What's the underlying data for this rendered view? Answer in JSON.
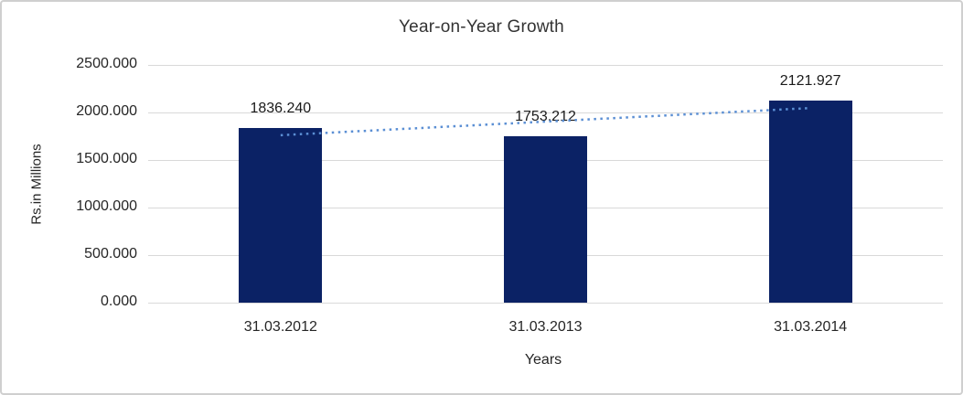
{
  "chart_data": {
    "type": "bar",
    "title": "Year-on-Year Growth",
    "xlabel": "Years",
    "ylabel": "Rs.in Millions",
    "categories": [
      "31.03.2012",
      "31.03.2013",
      "31.03.2014"
    ],
    "values": [
      1836.24,
      1753.212,
      2121.927
    ],
    "value_labels": [
      "1836.240",
      "1753.212",
      "2121.927"
    ],
    "ylim": [
      0,
      2500
    ],
    "ytick_labels": [
      "2500.000",
      "2000.000",
      "1500.000",
      "1000.000",
      "500.000",
      "0.000"
    ],
    "grid": true,
    "legend": false,
    "has_linear_trendline": true
  },
  "colors": {
    "bar": "#0b2265",
    "trendline": "#5b8fd4",
    "gridline": "#d9d9d9",
    "frame_border": "#cfcfcf",
    "text": "#262626",
    "background": "#ffffff"
  }
}
